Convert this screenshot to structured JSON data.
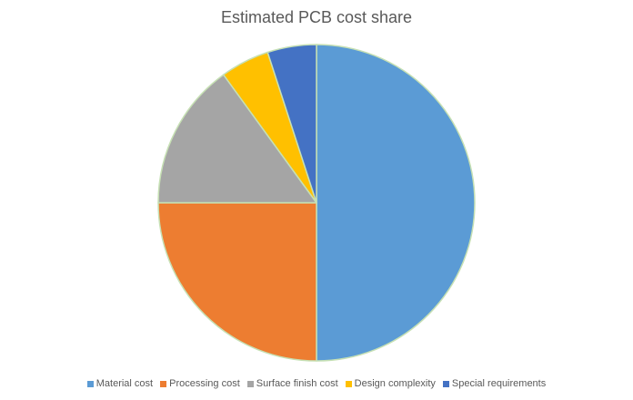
{
  "chart_data": {
    "type": "pie",
    "title": "Estimated PCB cost share",
    "categories": [
      "Material cost",
      "Processing cost",
      "Surface finish cost",
      "Design complexity",
      "Special requirements"
    ],
    "values": [
      50,
      25,
      15,
      5,
      5
    ],
    "colors": [
      "#5B9BD5",
      "#ED7D31",
      "#A5A5A5",
      "#FFC000",
      "#4472C4"
    ],
    "legend_position": "bottom",
    "slice_border_color": "#C6E0B4",
    "start_angle_deg": 0,
    "direction": "clockwise"
  }
}
